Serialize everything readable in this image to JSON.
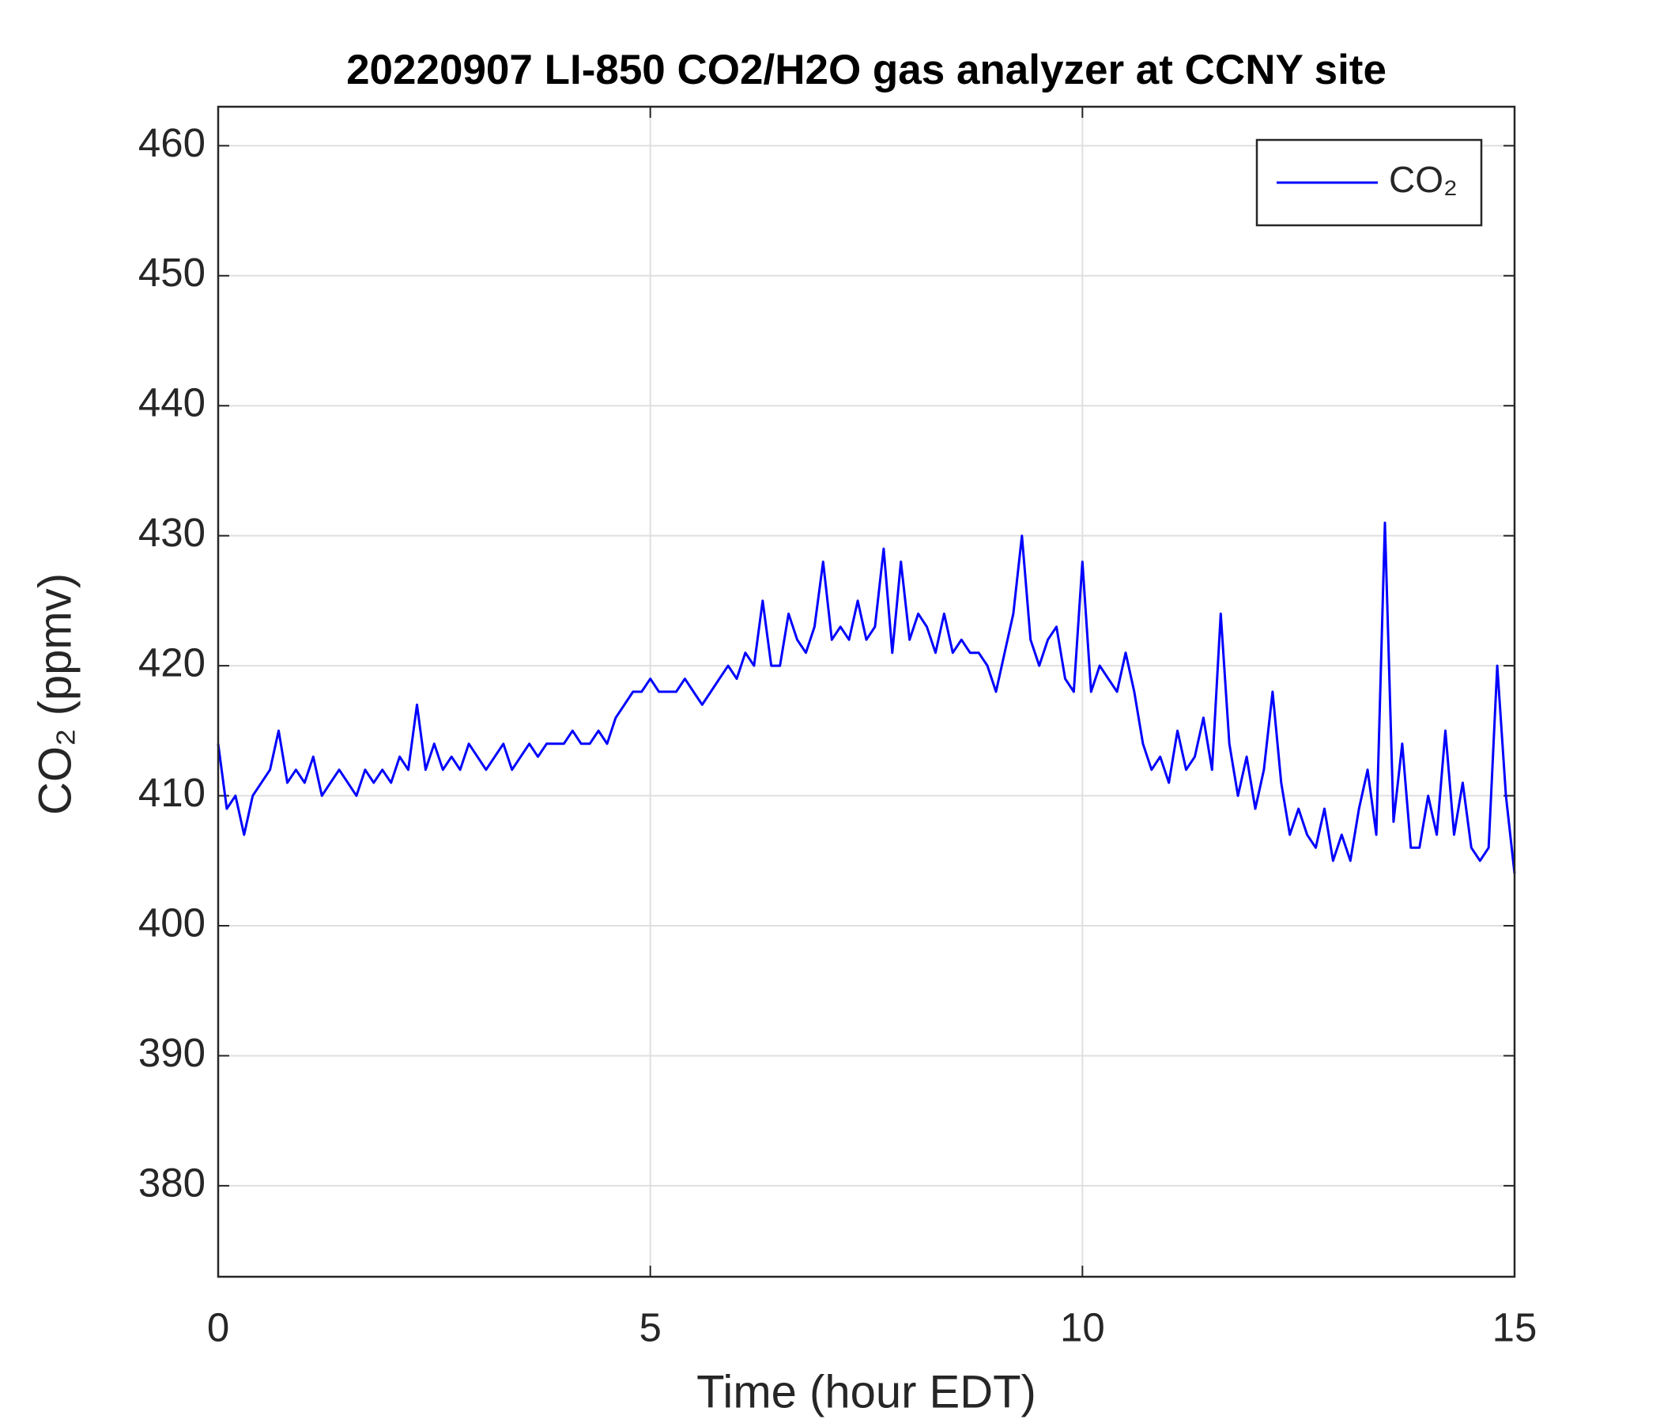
{
  "chart_data": {
    "type": "line",
    "title": "20220907 LI-850 CO2/H2O gas analyzer at CCNY site",
    "xlabel": "Time (hour EDT)",
    "ylabel": "CO₂ (ppmv)",
    "xlim": [
      0,
      15
    ],
    "xticks": [
      0,
      5,
      10,
      15
    ],
    "ylim": [
      373,
      463
    ],
    "yticks": [
      380,
      390,
      400,
      410,
      420,
      430,
      440,
      450,
      460
    ],
    "grid": true,
    "legend": "upper right",
    "x": [
      0,
      0.1,
      0.2,
      0.3,
      0.4,
      0.5,
      0.6,
      0.7,
      0.8,
      0.9,
      1,
      1.1,
      1.2,
      1.3,
      1.4,
      1.5,
      1.6,
      1.7,
      1.8,
      1.9,
      2,
      2.1,
      2.2,
      2.3,
      2.4,
      2.5,
      2.6,
      2.7,
      2.8,
      2.9,
      3,
      3.1,
      3.2,
      3.3,
      3.4,
      3.5,
      3.6,
      3.7,
      3.8,
      3.9,
      4,
      4.1,
      4.2,
      4.3,
      4.4,
      4.5,
      4.6,
      4.7,
      4.8,
      4.9,
      5,
      5.1,
      5.2,
      5.3,
      5.4,
      5.5,
      5.6,
      5.7,
      5.8,
      5.9,
      6,
      6.1,
      6.2,
      6.3,
      6.4,
      6.5,
      6.6,
      6.7,
      6.8,
      6.9,
      7,
      7.1,
      7.2,
      7.3,
      7.4,
      7.5,
      7.6,
      7.7,
      7.8,
      7.9,
      8,
      8.1,
      8.2,
      8.3,
      8.4,
      8.5,
      8.6,
      8.7,
      8.8,
      8.9,
      9,
      9.1,
      9.2,
      9.3,
      9.4,
      9.5,
      9.6,
      9.7,
      9.8,
      9.9,
      10,
      10.1,
      10.2,
      10.3,
      10.4,
      10.5,
      10.6,
      10.7,
      10.8,
      10.9,
      11,
      11.1,
      11.2,
      11.3,
      11.4,
      11.5,
      11.6,
      11.7,
      11.8,
      11.9,
      12,
      12.1,
      12.2,
      12.3,
      12.4,
      12.5,
      12.6,
      12.7,
      12.8,
      12.9,
      13,
      13.1,
      13.2,
      13.3,
      13.4,
      13.5,
      13.6,
      13.7,
      13.8,
      13.9,
      14,
      14.1,
      14.2,
      14.3,
      14.4,
      14.5,
      14.6,
      14.7,
      14.8,
      14.9,
      15
    ],
    "series": [
      {
        "name": "CO₂",
        "color": "#0000ff",
        "values": [
          414,
          409,
          410,
          407,
          410,
          411,
          412,
          415,
          411,
          412,
          411,
          413,
          410,
          411,
          412,
          411,
          410,
          412,
          411,
          412,
          411,
          413,
          412,
          417,
          412,
          414,
          412,
          413,
          412,
          414,
          413,
          412,
          413,
          414,
          412,
          413,
          414,
          413,
          414,
          414,
          414,
          415,
          414,
          414,
          415,
          414,
          416,
          417,
          418,
          418,
          419,
          418,
          418,
          418,
          419,
          418,
          417,
          418,
          419,
          420,
          419,
          421,
          420,
          425,
          420,
          420,
          424,
          422,
          421,
          423,
          428,
          422,
          423,
          422,
          425,
          422,
          423,
          429,
          421,
          428,
          422,
          424,
          423,
          421,
          424,
          421,
          422,
          421,
          421,
          420,
          418,
          421,
          424,
          430,
          422,
          420,
          422,
          423,
          419,
          418,
          428,
          418,
          420,
          419,
          418,
          421,
          418,
          414,
          412,
          413,
          411,
          415,
          412,
          413,
          416,
          412,
          424,
          414,
          410,
          413,
          409,
          412,
          418,
          411,
          407,
          409,
          407,
          406,
          409,
          405,
          407,
          405,
          409,
          412,
          407,
          431,
          408,
          414,
          406,
          406,
          410,
          407,
          415,
          407,
          411,
          406,
          405,
          406,
          420,
          410,
          404
        ]
      }
    ]
  }
}
